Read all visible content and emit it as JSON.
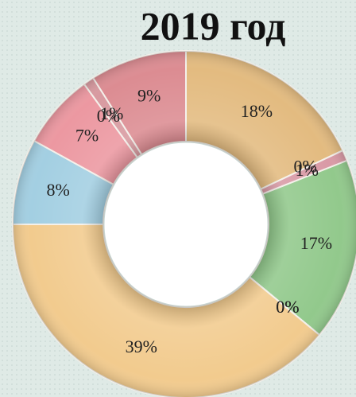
{
  "chart_data": {
    "type": "donut",
    "title": "2019 год",
    "values": [
      18,
      0,
      1,
      17,
      0,
      0,
      39,
      8,
      7,
      0,
      1,
      9
    ],
    "value_labels": [
      "18%",
      "0%",
      "1%",
      "17%",
      "0%",
      "0%",
      "39%",
      "8%",
      "7%",
      "0%",
      "1%",
      "9%"
    ],
    "colors": [
      "#e3bb80",
      "#b9c6c6",
      "#d99aa6",
      "#92c98c",
      "#d9b58c",
      "#d7a0a0",
      "#f2cb8e",
      "#a3cfe2",
      "#ec98a1",
      "#e9c3a0",
      "#d89aa0",
      "#dc8c92"
    ]
  }
}
